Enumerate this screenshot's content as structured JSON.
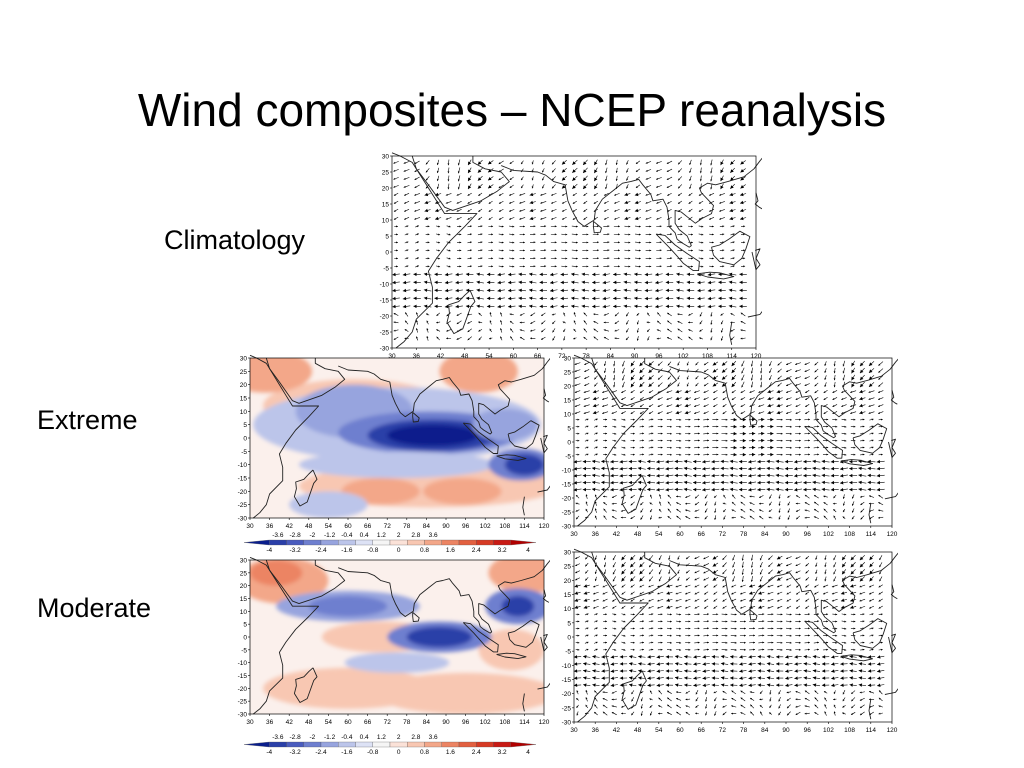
{
  "slide": {
    "title": "Wind composites – NCEP reanalysis",
    "rows": {
      "climatology": "Climatology",
      "extreme": "Extreme",
      "moderate": "Moderate"
    }
  },
  "axes": {
    "lat_ticks": [
      "30",
      "25",
      "20",
      "15",
      "10",
      "5",
      "0",
      "-5",
      "-10",
      "-15",
      "-20",
      "-25",
      "-30"
    ],
    "lon_ticks": [
      "30",
      "36",
      "42",
      "48",
      "54",
      "60",
      "66",
      "72",
      "78",
      "84",
      "90",
      "96",
      "102",
      "108",
      "114",
      "120"
    ]
  },
  "colorbar": {
    "top_labels": [
      "-3.6",
      "-2.8",
      "-2",
      "-1.2",
      "-0.4",
      "0.4",
      "1.2",
      "2",
      "2.8",
      "3.6"
    ],
    "bottom_labels": [
      "-4",
      "-3.2",
      "-2.4",
      "-1.6",
      "-0.8",
      "0",
      "0.8",
      "1.6",
      "2.4",
      "3.2",
      "4"
    ],
    "colors": [
      "#0a1e8c",
      "#2a3fa8",
      "#4a5cbe",
      "#6e7fcf",
      "#97a4de",
      "#bcc5ea",
      "#dde2f5",
      "#f5f5f5",
      "#fbe2d8",
      "#f8c7b2",
      "#f3a789",
      "#ec8463",
      "#e26040",
      "#d63a24",
      "#c81a14",
      "#b00000"
    ]
  },
  "colors": {
    "negative": "#0a1e8c",
    "positive": "#c81a14",
    "arrow": "#000000",
    "coast": "#222222"
  }
}
